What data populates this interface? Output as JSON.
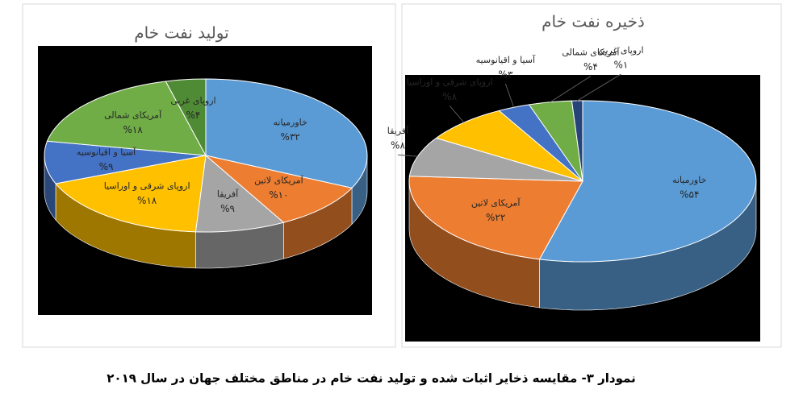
{
  "caption": "نمودار ۳- مقایسه ذخایر اثبات شده و تولید نفت خام  در مناطق مختلف جهان در سال ۲۰۱۹",
  "chart_data": [
    {
      "type": "pie",
      "title": "تولید نفت خام",
      "categories": [
        "خاورمیانه",
        "آمریکای لاتین",
        "آفریقا",
        "اروپای شرقی و اوراسیا",
        "آسیا و اقیانوسیه",
        "آمریکای شمالی",
        "اروپای غربی"
      ],
      "values": [
        32,
        10,
        9,
        18,
        9,
        18,
        4
      ],
      "value_labels": [
        "%۳۲",
        "%۱۰",
        "%۹",
        "%۱۸",
        "%۹",
        "%۱۸",
        "%۴"
      ],
      "colors": [
        "#5b9bd5",
        "#ed7d31",
        "#a5a5a5",
        "#ffc000",
        "#4472c4",
        "#70ad47",
        "#4f8a35"
      ]
    },
    {
      "type": "pie",
      "title": "ذخیره نفت خام",
      "categories": [
        "خاورمیانه",
        "آمریکای لاتین",
        "آفریقا",
        "اروپای شرقی و اوراسیا",
        "آسیا و اقیانوسیه",
        "آمریکای شمالی",
        "اروپای غربی"
      ],
      "values": [
        54,
        22,
        8,
        8,
        3,
        4,
        1
      ],
      "value_labels": [
        "%۵۴",
        "%۲۲",
        "%۸",
        "%۸",
        "%۳",
        "%۴",
        "%۱"
      ],
      "colors": [
        "#5b9bd5",
        "#ed7d31",
        "#a5a5a5",
        "#ffc000",
        "#4472c4",
        "#70ad47",
        "#264478"
      ]
    }
  ]
}
